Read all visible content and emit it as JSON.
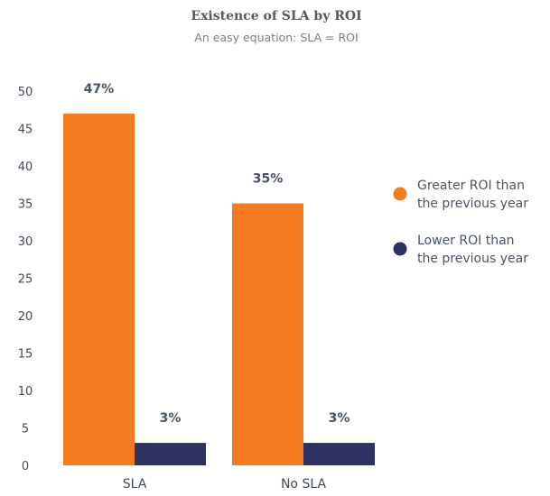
{
  "chart_data": {
    "type": "bar",
    "title": "Existence of SLA by ROI",
    "subtitle": "An easy equation: SLA = ROI",
    "xlabel": "",
    "ylabel": "",
    "categories": [
      "SLA",
      "No SLA"
    ],
    "series": [
      {
        "name": "Greater ROI than the previous year",
        "legend_lines": [
          "Greater ROI than",
          "the previous year"
        ],
        "color": "#f47b20",
        "values": [
          47,
          35
        ],
        "labels": [
          "47%",
          "35%"
        ]
      },
      {
        "name": "Lower ROI than the previous year",
        "legend_lines": [
          "Lower ROI than",
          "the previous year"
        ],
        "color": "#2f3160",
        "values": [
          3,
          3
        ],
        "labels": [
          "3%",
          "3%"
        ]
      }
    ],
    "ylim": [
      0,
      50
    ],
    "yticks": [
      "0",
      "5",
      "10",
      "15",
      "20",
      "25",
      "30",
      "35",
      "40",
      "45",
      "50"
    ],
    "grid": false,
    "legend_position": "right"
  }
}
